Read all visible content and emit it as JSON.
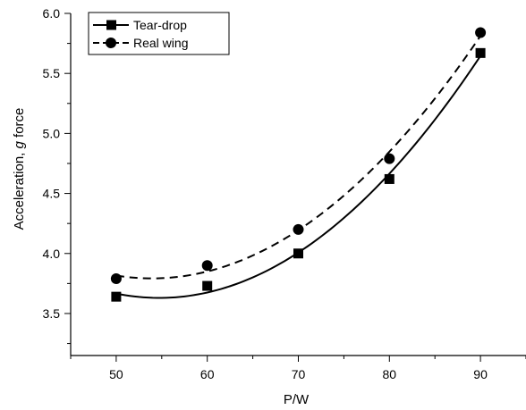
{
  "chart_data": {
    "type": "line",
    "xlabel": "P/W",
    "ylabel_prefix": "Acceleration, ",
    "ylabel_italic": "g",
    "ylabel_suffix": " force",
    "x": [
      50,
      60,
      70,
      80,
      90
    ],
    "xticks": [
      50,
      60,
      70,
      80,
      90
    ],
    "xlim": [
      45,
      95
    ],
    "yticks": [
      3.5,
      4.0,
      4.5,
      5.0,
      5.5,
      6.0
    ],
    "ytick_labels": [
      "3.5",
      "4.0",
      "4.5",
      "5.0",
      "5.5",
      "6.0"
    ],
    "ylim": [
      3.15,
      6.0
    ],
    "grid": false,
    "legend_position": "top-left",
    "series": [
      {
        "name": "Tear-drop",
        "values": [
          3.64,
          3.73,
          4.0,
          4.62,
          5.67
        ],
        "marker": "square",
        "line": "solid",
        "color": "#000000"
      },
      {
        "name": "Real wing",
        "values": [
          3.79,
          3.9,
          4.2,
          4.79,
          5.84
        ],
        "marker": "circle",
        "line": "dashed",
        "color": "#000000"
      }
    ]
  }
}
